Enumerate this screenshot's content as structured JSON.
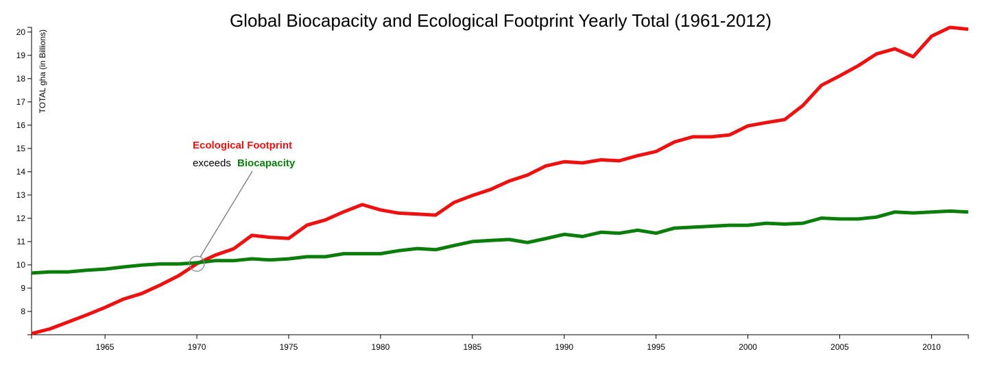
{
  "chart_data": {
    "type": "line",
    "title": "Global Biocapacity and Ecological Footprint Yearly Total (1961-2012)",
    "xlabel": "",
    "ylabel": "TOTAL gha (in Billions)",
    "xlim": [
      1961,
      2012
    ],
    "ylim": [
      7,
      20.2
    ],
    "x_ticks": [
      1965,
      1970,
      1975,
      1980,
      1985,
      1990,
      1995,
      2000,
      2005,
      2010
    ],
    "y_ticks": [
      8,
      9,
      10,
      11,
      12,
      13,
      14,
      15,
      16,
      17,
      18,
      19,
      20
    ],
    "grid": false,
    "x": [
      1961,
      1962,
      1963,
      1964,
      1965,
      1966,
      1967,
      1968,
      1969,
      1970,
      1971,
      1972,
      1973,
      1974,
      1975,
      1976,
      1977,
      1978,
      1979,
      1980,
      1981,
      1982,
      1983,
      1984,
      1985,
      1986,
      1987,
      1988,
      1989,
      1990,
      1991,
      1992,
      1993,
      1994,
      1995,
      1996,
      1997,
      1998,
      1999,
      2000,
      2001,
      2002,
      2003,
      2004,
      2005,
      2006,
      2007,
      2008,
      2009,
      2010,
      2011,
      2012
    ],
    "series": [
      {
        "name": "Ecological Footprint",
        "color": "#ee1111",
        "values": [
          7.05,
          7.25,
          7.55,
          7.85,
          8.17,
          8.53,
          8.77,
          9.13,
          9.53,
          10.05,
          10.42,
          10.69,
          11.27,
          11.18,
          11.14,
          11.71,
          11.93,
          12.28,
          12.59,
          12.36,
          12.22,
          12.18,
          12.14,
          12.68,
          12.98,
          13.24,
          13.6,
          13.86,
          14.25,
          14.43,
          14.38,
          14.51,
          14.47,
          14.69,
          14.87,
          15.28,
          15.5,
          15.5,
          15.58,
          15.97,
          16.11,
          16.24,
          16.85,
          17.71,
          18.12,
          18.55,
          19.06,
          19.28,
          18.94,
          19.82,
          20.2,
          20.12
        ]
      },
      {
        "name": "Biocapacity",
        "color": "#0a7d0a",
        "values": [
          9.65,
          9.7,
          9.7,
          9.77,
          9.82,
          9.91,
          9.99,
          10.04,
          10.04,
          10.09,
          10.18,
          10.18,
          10.26,
          10.21,
          10.26,
          10.35,
          10.35,
          10.48,
          10.48,
          10.48,
          10.61,
          10.7,
          10.65,
          10.83,
          11.0,
          11.05,
          11.09,
          10.96,
          11.13,
          11.31,
          11.22,
          11.4,
          11.36,
          11.49,
          11.36,
          11.58,
          11.62,
          11.66,
          11.7,
          11.7,
          11.79,
          11.75,
          11.79,
          12.01,
          11.97,
          11.97,
          12.05,
          12.27,
          12.23,
          12.27,
          12.31,
          12.27
        ]
      }
    ],
    "annotation": {
      "line1": "Ecological Footprint",
      "line2_prefix": "exceeds",
      "line2_highlight": "Biocapacity",
      "year": 1970,
      "value": 10.05,
      "color_red": "#ee1111",
      "color_green": "#0a7d0a"
    }
  }
}
